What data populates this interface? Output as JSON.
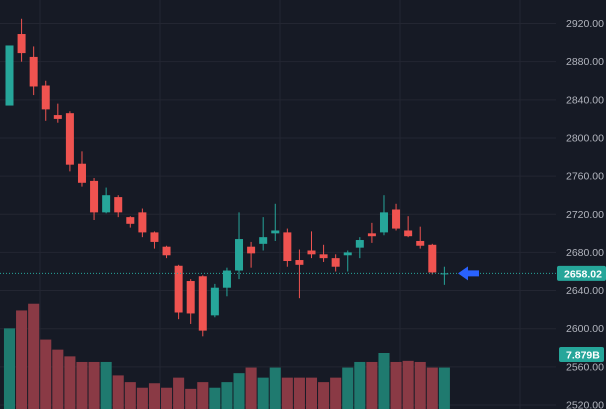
{
  "chart_data": {
    "type": "candlestick",
    "title": "",
    "xlabel": "",
    "ylabel": "",
    "ylim": [
      2520,
      2930
    ],
    "y_ticks": [
      2920,
      2880,
      2840,
      2800,
      2760,
      2720,
      2680,
      2640,
      2600,
      2560,
      2520
    ],
    "y_tick_labels": [
      "2920.00",
      "2880.00",
      "2840.00",
      "2800.00",
      "2760.00",
      "2720.00",
      "2680.00",
      "2640.00",
      "2600.00",
      "2560.00",
      "2520.00"
    ],
    "grid": true,
    "last_price": 2658.02,
    "last_price_label": "2658.02",
    "last_volume_label": "7.879B",
    "colors": {
      "up": "#26a69a",
      "down": "#ef5350",
      "volume_up": "#1f7a6f",
      "volume_down": "#8a3a45",
      "background": "#161a25",
      "grid": "#232632",
      "axis_text": "#b2b5be",
      "price_line": "#26a69a",
      "arrow": "#2962ff"
    },
    "candles": [
      {
        "o": 2834,
        "h": 2897,
        "l": 2834,
        "c": 2897
      },
      {
        "o": 2909,
        "h": 2925,
        "l": 2880,
        "c": 2889
      },
      {
        "o": 2885,
        "h": 2896,
        "l": 2845,
        "c": 2854
      },
      {
        "o": 2855,
        "h": 2860,
        "l": 2818,
        "c": 2830
      },
      {
        "o": 2824,
        "h": 2836,
        "l": 2816,
        "c": 2820
      },
      {
        "o": 2826,
        "h": 2828,
        "l": 2765,
        "c": 2772
      },
      {
        "o": 2773,
        "h": 2786,
        "l": 2749,
        "c": 2753
      },
      {
        "o": 2755,
        "h": 2758,
        "l": 2714,
        "c": 2722
      },
      {
        "o": 2722,
        "h": 2748,
        "l": 2721,
        "c": 2740
      },
      {
        "o": 2738,
        "h": 2740,
        "l": 2717,
        "c": 2722
      },
      {
        "o": 2717,
        "h": 2718,
        "l": 2706,
        "c": 2710
      },
      {
        "o": 2722,
        "h": 2726,
        "l": 2696,
        "c": 2701
      },
      {
        "o": 2701,
        "h": 2702,
        "l": 2684,
        "c": 2691
      },
      {
        "o": 2686,
        "h": 2687,
        "l": 2674,
        "c": 2677
      },
      {
        "o": 2666,
        "h": 2667,
        "l": 2610,
        "c": 2617
      },
      {
        "o": 2650,
        "h": 2652,
        "l": 2605,
        "c": 2616
      },
      {
        "o": 2655,
        "h": 2656,
        "l": 2592,
        "c": 2598
      },
      {
        "o": 2614,
        "h": 2647,
        "l": 2612,
        "c": 2643
      },
      {
        "o": 2643,
        "h": 2664,
        "l": 2634,
        "c": 2661
      },
      {
        "o": 2661,
        "h": 2722,
        "l": 2652,
        "c": 2694
      },
      {
        "o": 2686,
        "h": 2691,
        "l": 2664,
        "c": 2679
      },
      {
        "o": 2689,
        "h": 2717,
        "l": 2682,
        "c": 2696
      },
      {
        "o": 2700,
        "h": 2731,
        "l": 2692,
        "c": 2703
      },
      {
        "o": 2701,
        "h": 2705,
        "l": 2665,
        "c": 2671
      },
      {
        "o": 2672,
        "h": 2683,
        "l": 2632,
        "c": 2667
      },
      {
        "o": 2682,
        "h": 2702,
        "l": 2674,
        "c": 2678
      },
      {
        "o": 2678,
        "h": 2688,
        "l": 2670,
        "c": 2674
      },
      {
        "o": 2674,
        "h": 2678,
        "l": 2660,
        "c": 2665
      },
      {
        "o": 2677,
        "h": 2682,
        "l": 2660,
        "c": 2680
      },
      {
        "o": 2685,
        "h": 2696,
        "l": 2674,
        "c": 2693
      },
      {
        "o": 2700,
        "h": 2711,
        "l": 2690,
        "c": 2697
      },
      {
        "o": 2701,
        "h": 2740,
        "l": 2698,
        "c": 2722
      },
      {
        "o": 2725,
        "h": 2731,
        "l": 2703,
        "c": 2705
      },
      {
        "o": 2703,
        "h": 2718,
        "l": 2696,
        "c": 2697
      },
      {
        "o": 2692,
        "h": 2707,
        "l": 2684,
        "c": 2687
      },
      {
        "o": 2688,
        "h": 2689,
        "l": 2657,
        "c": 2659
      },
      {
        "o": 2657,
        "h": 2665,
        "l": 2646,
        "c": 2658.02
      }
    ],
    "volume_levels": [
      0.72,
      0.88,
      0.94,
      0.62,
      0.53,
      0.47,
      0.42,
      0.42,
      0.42,
      0.3,
      0.24,
      0.19,
      0.23,
      0.19,
      0.28,
      0.18,
      0.24,
      0.19,
      0.24,
      0.32,
      0.37,
      0.28,
      0.37,
      0.28,
      0.28,
      0.28,
      0.24,
      0.28,
      0.37,
      0.42,
      0.42,
      0.5,
      0.42,
      0.43,
      0.42,
      0.37,
      0.37
    ]
  }
}
